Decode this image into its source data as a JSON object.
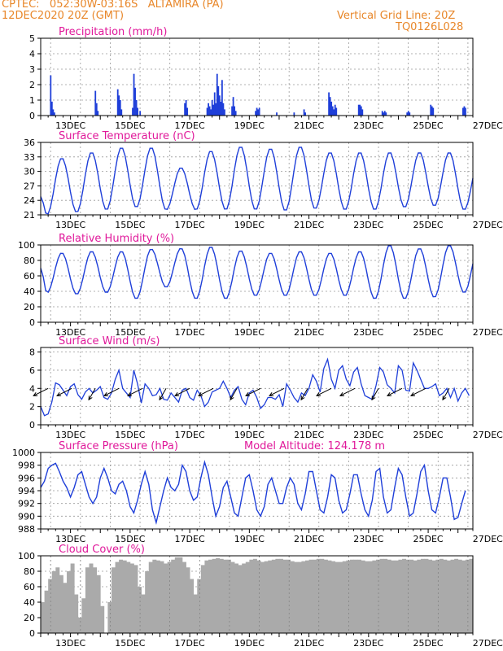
{
  "header": {
    "line1_left": "CPTEC:   052:30W-03:16S   ALTAMIRA (PA)",
    "line2_left": "12DEC2020 20Z (GMT)",
    "line1_right": "Vertical Grid Line: 20Z",
    "line2_right": "TQ0126L028"
  },
  "colors": {
    "header": "#e8872a",
    "title": "#e0189a",
    "series": "#1f3fd9",
    "cloud": "#aaaaaa",
    "arrow": "#000000"
  },
  "chart_data": [
    {
      "type": "bar",
      "title": "Precipitation (mm/h)",
      "x_ticks": [
        "13DEC",
        "15DEC",
        "17DEC",
        "19DEC",
        "21DEC",
        "23DEC",
        "25DEC",
        "27DEC"
      ],
      "yticks": [
        0,
        1,
        2,
        3,
        4,
        5
      ],
      "ylim": [
        0,
        5
      ],
      "x_range_hours": [
        0,
        348
      ],
      "bars": [
        [
          8,
          2.6
        ],
        [
          9,
          0.9
        ],
        [
          10,
          0.4
        ],
        [
          11,
          0.2
        ],
        [
          44,
          1.6
        ],
        [
          45,
          0.8
        ],
        [
          46,
          0.3
        ],
        [
          62,
          1.7
        ],
        [
          63,
          1.3
        ],
        [
          64,
          1.0
        ],
        [
          65,
          0.4
        ],
        [
          74,
          0.5
        ],
        [
          75,
          2.7
        ],
        [
          76,
          1.8
        ],
        [
          77,
          1.0
        ],
        [
          78,
          0.5
        ],
        [
          80,
          0.3
        ],
        [
          116,
          0.8
        ],
        [
          117,
          1.0
        ],
        [
          118,
          0.5
        ],
        [
          134,
          0.5
        ],
        [
          135,
          0.8
        ],
        [
          136,
          0.6
        ],
        [
          137,
          0.4
        ],
        [
          138,
          1.0
        ],
        [
          139,
          0.7
        ],
        [
          140,
          1.5
        ],
        [
          141,
          0.8
        ],
        [
          142,
          2.7
        ],
        [
          143,
          1.9
        ],
        [
          144,
          1.3
        ],
        [
          145,
          0.9
        ],
        [
          146,
          2.3
        ],
        [
          147,
          0.8
        ],
        [
          148,
          0.4
        ],
        [
          154,
          0.6
        ],
        [
          155,
          1.2
        ],
        [
          156,
          0.6
        ],
        [
          157,
          0.3
        ],
        [
          173,
          0.3
        ],
        [
          174,
          0.5
        ],
        [
          175,
          0.4
        ],
        [
          176,
          0.5
        ],
        [
          190,
          0.2
        ],
        [
          204,
          0.2
        ],
        [
          212,
          0.4
        ],
        [
          213,
          0.2
        ],
        [
          232,
          1.5
        ],
        [
          233,
          1.2
        ],
        [
          234,
          0.9
        ],
        [
          235,
          0.6
        ],
        [
          236,
          0.4
        ],
        [
          237,
          0.7
        ],
        [
          238,
          0.5
        ],
        [
          256,
          0.7
        ],
        [
          257,
          0.7
        ],
        [
          258,
          0.6
        ],
        [
          259,
          0.4
        ],
        [
          275,
          0.3
        ],
        [
          276,
          0.2
        ],
        [
          277,
          0.3
        ],
        [
          278,
          0.2
        ],
        [
          295,
          0.2
        ],
        [
          296,
          0.3
        ],
        [
          297,
          0.2
        ],
        [
          314,
          0.7
        ],
        [
          315,
          0.6
        ],
        [
          316,
          0.5
        ],
        [
          340,
          0.5
        ],
        [
          341,
          0.6
        ],
        [
          342,
          0.5
        ]
      ]
    },
    {
      "type": "line",
      "title": "Surface Temperature (nC)",
      "x_ticks": [
        "13DEC",
        "15DEC",
        "17DEC",
        "19DEC",
        "21DEC",
        "23DEC",
        "25DEC",
        "27DEC"
      ],
      "yticks": [
        21,
        24,
        27,
        30,
        33,
        36
      ],
      "ylim": [
        21,
        36
      ],
      "x_range_hours": [
        0,
        348
      ],
      "daily": {
        "min": [
          21.0,
          21.5,
          22.0,
          22.5,
          22.0,
          22.0,
          22.0,
          22.0,
          21.8,
          22.2,
          22.0,
          22.0,
          22.5,
          22.8,
          22.0
        ],
        "max": [
          32.8,
          34.0,
          35.0,
          35.0,
          30.8,
          34.3,
          35.2,
          34.8,
          35.2,
          34.0,
          34.0,
          34.0,
          34.0,
          34.0,
          32.5
        ],
        "start": 24.8,
        "end": 28.0
      }
    },
    {
      "type": "line",
      "title": "Relative Humidity (%)",
      "x_ticks": [
        "13DEC",
        "15DEC",
        "17DEC",
        "19DEC",
        "21DEC",
        "23DEC",
        "25DEC",
        "27DEC"
      ],
      "yticks": [
        0,
        20,
        40,
        60,
        80,
        100
      ],
      "ylim": [
        0,
        100
      ],
      "x_range_hours": [
        0,
        348
      ],
      "daily": {
        "max": [
          90,
          92,
          92,
          95,
          96,
          98,
          93,
          90,
          92,
          90,
          92,
          100,
          96,
          100,
          98
        ],
        "min": [
          38,
          36,
          38,
          30,
          45,
          30,
          30,
          34,
          34,
          34,
          34,
          30,
          30,
          32,
          38
        ],
        "start": 70,
        "end": 55
      }
    },
    {
      "type": "line",
      "title": "Surface Wind (m/s)",
      "x_ticks": [
        "13DEC",
        "15DEC",
        "17DEC",
        "19DEC",
        "21DEC",
        "23DEC",
        "25DEC",
        "27DEC"
      ],
      "yticks": [
        0,
        2,
        4,
        6,
        8
      ],
      "ylim": [
        0,
        8.5
      ],
      "x_range_hours": [
        0,
        348
      ],
      "values_per_3h": [
        2.0,
        1.0,
        1.2,
        2.5,
        4.6,
        4.4,
        3.8,
        3.2,
        4.2,
        4.5,
        3.3,
        2.8,
        3.6,
        4.0,
        3.5,
        3.8,
        4.2,
        3.0,
        2.8,
        3.5,
        5.0,
        6.0,
        4.0,
        3.5,
        3.0,
        6.0,
        4.5,
        2.4,
        4.5,
        4.0,
        3.2,
        3.3,
        4.0,
        2.8,
        2.7,
        3.5,
        3.0,
        2.5,
        3.8,
        4.0,
        3.0,
        2.7,
        3.8,
        3.2,
        2.0,
        2.5,
        3.6,
        3.8,
        4.0,
        4.8,
        4.0,
        3.0,
        3.8,
        4.2,
        2.8,
        2.2,
        3.5,
        3.8,
        3.0,
        1.8,
        2.2,
        3.0,
        3.0,
        2.8,
        3.3,
        2.0,
        4.5,
        3.8,
        3.0,
        2.5,
        3.5,
        3.2,
        4.0,
        5.5,
        4.8,
        3.6,
        6.2,
        7.2,
        5.0,
        4.0,
        6.0,
        6.5,
        5.0,
        4.3,
        5.8,
        6.3,
        4.5,
        3.2,
        3.0,
        2.8,
        4.3,
        6.3,
        5.8,
        4.4,
        4.0,
        3.5,
        6.5,
        6.0,
        3.8,
        3.7,
        6.8,
        6.0,
        5.0,
        4.0,
        4.0,
        4.2,
        4.5,
        3.2,
        3.5,
        4.0,
        3.0,
        4.0,
        2.6,
        3.5,
        4.0,
        3.2
      ],
      "arrows": {
        "count": 18,
        "base_speed": 4
      }
    },
    {
      "type": "line",
      "title": "Surface Pressure (hPa)",
      "annotation": "Model Altitude: 124.178 m",
      "x_ticks": [
        "13DEC",
        "15DEC",
        "17DEC",
        "19DEC",
        "21DEC",
        "23DEC",
        "25DEC",
        "27DEC"
      ],
      "yticks": [
        988,
        990,
        992,
        994,
        996,
        998,
        1000
      ],
      "ylim": [
        988,
        1000
      ],
      "x_range_hours": [
        0,
        348
      ],
      "values_per_3h": [
        994.5,
        995.5,
        997.5,
        998.0,
        998.3,
        997.0,
        995.5,
        994.5,
        993.0,
        994.5,
        996.5,
        997.0,
        995.0,
        993.0,
        992.0,
        993.0,
        996.0,
        997.5,
        996.0,
        994.0,
        993.5,
        995.0,
        995.5,
        994.0,
        991.5,
        990.5,
        992.5,
        995.0,
        997.0,
        995.0,
        991.0,
        989.0,
        991.5,
        994.0,
        996.0,
        994.5,
        994.0,
        995.0,
        998.0,
        997.0,
        994.0,
        992.5,
        993.0,
        996.0,
        998.5,
        996.5,
        993.0,
        990.0,
        991.5,
        994.5,
        995.5,
        993.0,
        990.5,
        990.0,
        993.0,
        996.0,
        996.5,
        994.0,
        991.0,
        990.0,
        991.5,
        995.0,
        996.0,
        994.0,
        992.0,
        992.0,
        994.5,
        996.0,
        995.0,
        992.0,
        991.0,
        993.5,
        997.0,
        997.0,
        994.0,
        991.0,
        990.5,
        993.0,
        996.5,
        996.0,
        992.5,
        990.5,
        991.0,
        993.5,
        996.5,
        996.5,
        993.5,
        991.0,
        990.0,
        992.5,
        997.0,
        997.5,
        993.0,
        990.5,
        991.0,
        994.5,
        997.5,
        996.5,
        993.0,
        990.0,
        990.5,
        993.5,
        997.0,
        998.0,
        994.0,
        991.0,
        990.5,
        993.0,
        996.0,
        996.0,
        993.0,
        989.5,
        989.8,
        992.0,
        994.0
      ],
      "annotation_unused": ""
    },
    {
      "type": "bar",
      "title": "Cloud Cover (%)",
      "x_ticks": [
        "13DEC",
        "15DEC",
        "17DEC",
        "19DEC",
        "21DEC",
        "23DEC",
        "25DEC",
        "27DEC"
      ],
      "yticks": [
        0,
        20,
        40,
        60,
        80,
        100
      ],
      "ylim": [
        0,
        100
      ],
      "x_range_hours": [
        0,
        348
      ],
      "values_per_3h": [
        40,
        55,
        70,
        80,
        85,
        75,
        65,
        80,
        90,
        50,
        20,
        45,
        85,
        90,
        85,
        75,
        35,
        0,
        40,
        85,
        92,
        95,
        94,
        92,
        90,
        88,
        60,
        50,
        80,
        92,
        95,
        94,
        93,
        90,
        92,
        95,
        98,
        98,
        92,
        85,
        70,
        50,
        70,
        88,
        94,
        95,
        96,
        97,
        96,
        95,
        95,
        92,
        90,
        88,
        90,
        92,
        95,
        96,
        94,
        92,
        93,
        94,
        95,
        96,
        96,
        95,
        95,
        93,
        92,
        92,
        93,
        94,
        95,
        95,
        96,
        96,
        95,
        94,
        93,
        92,
        92,
        93,
        94,
        95,
        95,
        95,
        94,
        93,
        93,
        94,
        95,
        96,
        96,
        95,
        94,
        94,
        95,
        96,
        95,
        95,
        94,
        95,
        96,
        96,
        95,
        94,
        95,
        96,
        95,
        94,
        95,
        96,
        95,
        94,
        95,
        96
      ]
    }
  ]
}
